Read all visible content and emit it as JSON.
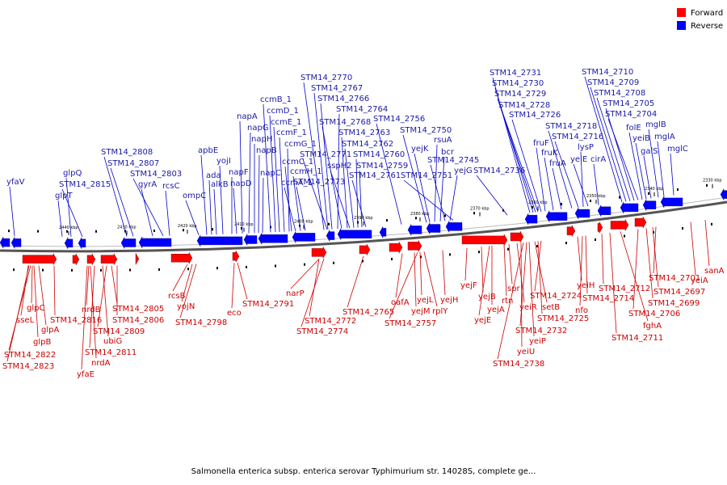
{
  "legend": {
    "forward_label": "Forward",
    "reverse_label": "Reverse",
    "forward_color": "#ff0000",
    "reverse_color": "#0000ff"
  },
  "colors": {
    "backbone": "#555555",
    "forward_feature": "#ff0000",
    "reverse_feature": "#0000ff",
    "forward_text": "#cc0000",
    "reverse_text": "#1a1aa6"
  },
  "caption": "Salmonella enterica subsp. enterica serovar Typhimurium str. 14028S, complete ge...",
  "scale_ticks": [
    "2440 kbp",
    "2430 kbp",
    "2420 kbp",
    "2410 kbp",
    "2400 kbp",
    "2390 kbp",
    "2380 kbp",
    "2370 kbp",
    "2360 kbp",
    "2350 kbp",
    "2340 kbp",
    "2330 kbp"
  ],
  "reverse_genes": [
    "yfaV",
    "glpT",
    "glpQ",
    "STM14_2815",
    "STM14_2808",
    "STM14_2807",
    "gyrA",
    "STM14_2803",
    "rcsC",
    "ompC",
    "apbE",
    "ada",
    "alkB",
    "yojI",
    "napF",
    "napD",
    "napA",
    "napG",
    "napH",
    "napB",
    "napC",
    "ccmB_1",
    "ccmD_1",
    "ccmE_1",
    "ccmF_1",
    "ccmG_1",
    "ccmC_1",
    "ccmA_1",
    "ccmH_1",
    "STM14_2773",
    "STM14_2770",
    "STM14_2767",
    "STM14_2766",
    "STM14_2764",
    "STM14_2768",
    "STM14_2763",
    "STM14_2771",
    "sspH2",
    "STM14_2762",
    "STM14_2760",
    "STM14_2759",
    "STM14_2761",
    "STM14_2756",
    "STM14_2750",
    "yejK",
    "rsuA",
    "bcr",
    "STM14_2745",
    "yejG",
    "STM14_2751",
    "STM14_2736",
    "STM14_2731",
    "STM14_2730",
    "STM14_2729",
    "STM14_2728",
    "STM14_2726",
    "fruF",
    "fruK",
    "fruA",
    "STM14_2718",
    "STM14_2716",
    "lysP",
    "yeiE",
    "cirA",
    "STM14_2710",
    "STM14_2709",
    "STM14_2708",
    "STM14_2705",
    "STM14_2704",
    "folE",
    "yeiB",
    "galS",
    "mglB",
    "mglA",
    "mglC"
  ],
  "forward_genes": [
    "glpC",
    "sseL",
    "glpB",
    "glpA",
    "STM14_2822",
    "STM14_2823",
    "STM14_2816",
    "nrdB",
    "yfaE",
    "nrdA",
    "STM14_2811",
    "ubiG",
    "STM14_2809",
    "STM14_2805",
    "STM14_2806",
    "rcsB",
    "yojN",
    "STM14_2798",
    "eco",
    "STM14_2791",
    "narP",
    "STM14_2772",
    "STM14_2774",
    "STM14_2765",
    "oafA",
    "yejM",
    "STM14_2757",
    "yejL",
    "rplY",
    "yejH",
    "yejF",
    "yejB",
    "yejE",
    "yejA",
    "rtn",
    "spr",
    "yeiR",
    "yeiU",
    "STM14_2738",
    "STM14_2732",
    "yeiP",
    "setB",
    "STM14_2725",
    "STM14_2724",
    "yeiH",
    "nfo",
    "STM14_2714",
    "STM14_2712",
    "STM14_2711",
    "fghA",
    "STM14_2706",
    "STM14_2699",
    "STM14_2697",
    "STM14_2701",
    "yeiA",
    "sanA"
  ]
}
